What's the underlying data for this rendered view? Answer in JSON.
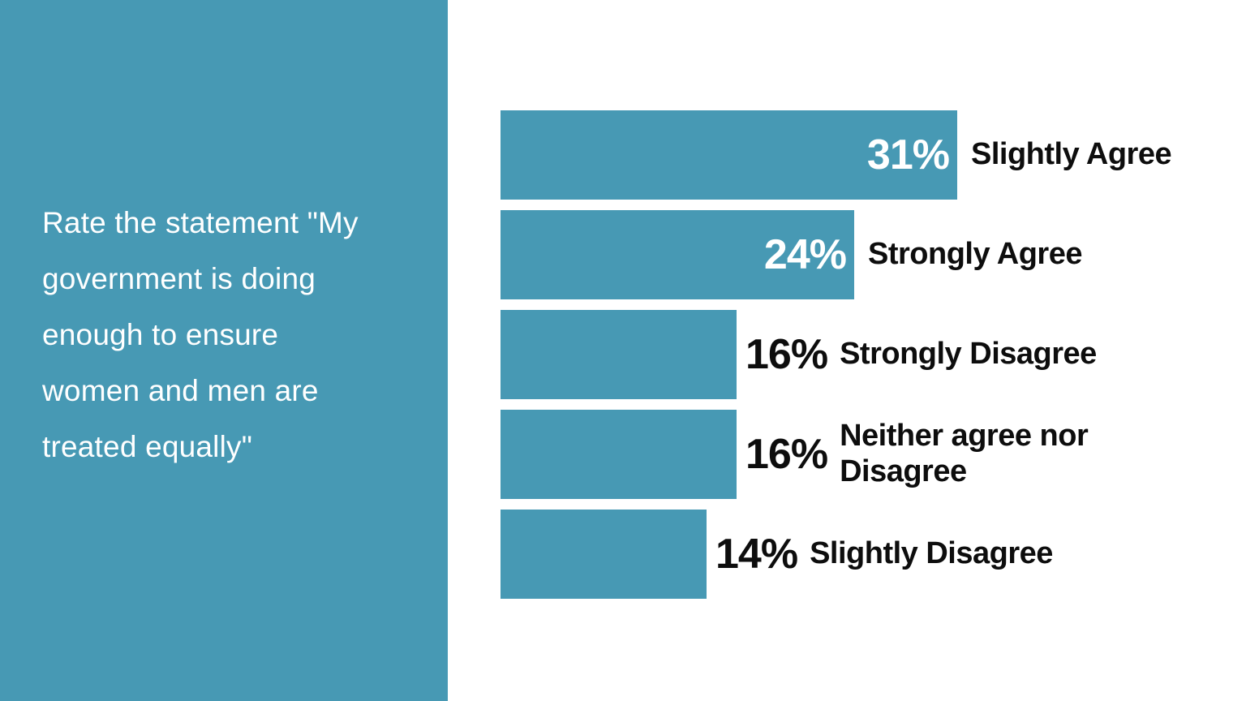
{
  "sidebar": {
    "background": "#4799B4",
    "text_color": "#ffffff",
    "statement": "Rate the statement \"My\ngovernment is doing\nenough to ensure\nwomen and men are\ntreated equally\""
  },
  "chart_data": {
    "type": "bar",
    "orientation": "horizontal",
    "title": "",
    "xlabel": "",
    "ylabel": "",
    "grid": false,
    "legend": false,
    "bar_color": "#4799B4",
    "value_inside_color": "#ffffff",
    "value_outside_color": "#0d0d0d",
    "label_color": "#0d0d0d",
    "categories": [
      "Slightly Agree",
      "Strongly Agree",
      "Strongly Disagree",
      "Neither agree nor Disagree",
      "Slightly Disagree"
    ],
    "values": [
      31,
      24,
      16,
      16,
      14
    ],
    "rows": [
      {
        "value": 31,
        "value_label": "31%",
        "label": "Slightly Agree",
        "value_inside": true
      },
      {
        "value": 24,
        "value_label": "24%",
        "label": "Strongly Agree",
        "value_inside": true
      },
      {
        "value": 16,
        "value_label": "16%",
        "label": "Strongly Disagree",
        "value_inside": false
      },
      {
        "value": 16,
        "value_label": "16%",
        "label": "Neither agree nor\nDisagree",
        "value_inside": false
      },
      {
        "value": 14,
        "value_label": "14%",
        "label": "Slightly Disagree",
        "value_inside": false
      }
    ]
  }
}
